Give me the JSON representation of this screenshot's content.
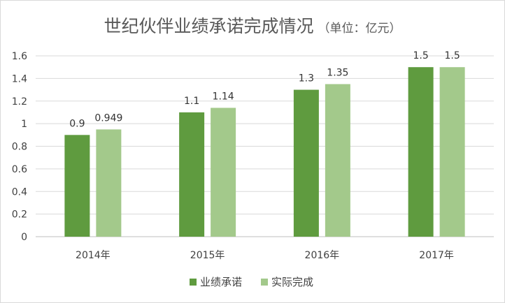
{
  "chart_data": {
    "type": "bar",
    "title": "世纪伙伴业绩承诺完成情况",
    "subtitle": "（单位：亿元）",
    "categories": [
      "2014年",
      "2015年",
      "2016年",
      "2017年"
    ],
    "series": [
      {
        "name": "业绩承诺",
        "values": [
          0.9,
          1.1,
          1.3,
          1.5
        ],
        "labels": [
          "0.9",
          "1.1",
          "1.3",
          "1.5"
        ],
        "color": "#5f9b3f"
      },
      {
        "name": "实际完成",
        "values": [
          0.949,
          1.14,
          1.35,
          1.5
        ],
        "labels": [
          "0.949",
          "1.14",
          "1.35",
          "1.5"
        ],
        "color": "#a3c98b"
      }
    ],
    "yticks": [
      "0",
      "0.2",
      "0.4",
      "0.6",
      "0.8",
      "1",
      "1.2",
      "1.4",
      "1.6"
    ],
    "ylim": [
      0,
      1.6
    ],
    "grid": true,
    "legend_position": "bottom"
  }
}
